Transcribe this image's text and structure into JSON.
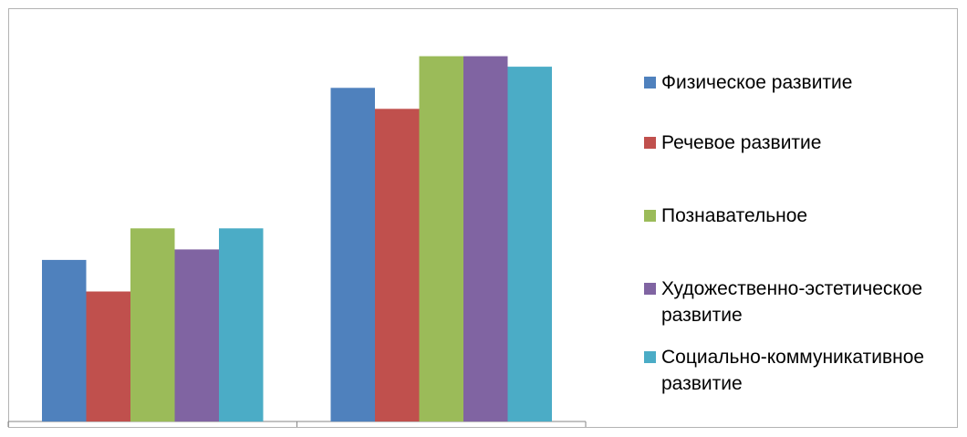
{
  "chart_data": {
    "type": "bar",
    "categories": [
      "",
      ""
    ],
    "series": [
      {
        "name": "Физическое развитие",
        "color": "#4F81BD",
        "values": [
          46,
          95
        ]
      },
      {
        "name": "Речевое развитие",
        "color": "#C0504D",
        "values": [
          37,
          89
        ]
      },
      {
        "name": "Познавательное",
        "color": "#9BBB59",
        "values": [
          55,
          104
        ]
      },
      {
        "name": "Художественно-эстетическое развитие",
        "color": "#8064A2",
        "values": [
          49,
          104
        ]
      },
      {
        "name": "Социально-коммуникативное развитие",
        "color": "#4BACC6",
        "values": [
          55,
          101
        ]
      }
    ],
    "ylim": [
      0,
      120
    ],
    "grid": false,
    "legend": "right"
  }
}
